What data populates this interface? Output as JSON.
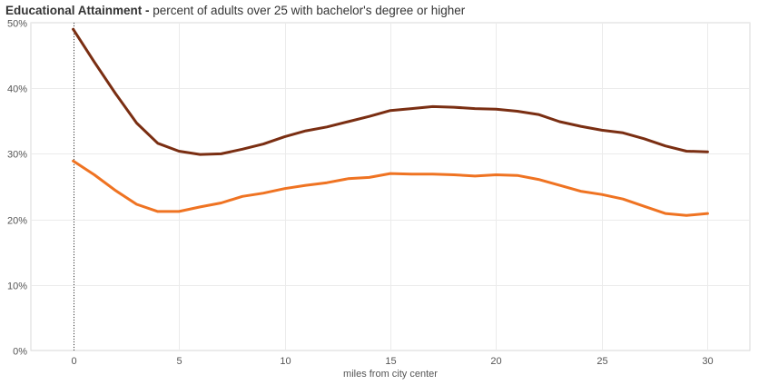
{
  "header": {
    "title_bold": "Educational Attainment -",
    "title_rest": " percent of adults over 25 with bachelor's degree or higher"
  },
  "chart_data": {
    "type": "line",
    "title": "Educational Attainment - percent of adults over 25 with bachelor's degree or higher",
    "xlabel": "miles from city center",
    "ylabel": "",
    "xlim": [
      -2,
      32
    ],
    "ylim": [
      0,
      50
    ],
    "x_ticks": [
      0,
      5,
      10,
      15,
      20,
      25,
      30
    ],
    "y_ticks": [
      0,
      10,
      20,
      30,
      40,
      50
    ],
    "y_tick_labels": [
      "0%",
      "10%",
      "20%",
      "30%",
      "40%",
      "50%"
    ],
    "grid": true,
    "reference_line_x": 0,
    "x": [
      0,
      1,
      2,
      3,
      4,
      5,
      6,
      7,
      8,
      9,
      10,
      11,
      12,
      13,
      14,
      15,
      16,
      17,
      18,
      19,
      20,
      21,
      22,
      23,
      24,
      25,
      26,
      27,
      28,
      29,
      30
    ],
    "series": [
      {
        "name": "series-dark",
        "color": "#7a2e12",
        "values": [
          49.0,
          44.0,
          39.2,
          34.7,
          31.6,
          30.4,
          29.9,
          30.0,
          30.7,
          31.5,
          32.6,
          33.5,
          34.1,
          34.9,
          35.7,
          36.6,
          36.9,
          37.2,
          37.1,
          36.9,
          36.8,
          36.5,
          36.0,
          34.9,
          34.2,
          33.6,
          33.2,
          32.3,
          31.2,
          30.4,
          30.3
        ]
      },
      {
        "name": "series-light",
        "color": "#ef7322",
        "values": [
          28.9,
          26.8,
          24.4,
          22.3,
          21.2,
          21.2,
          21.9,
          22.5,
          23.5,
          24.0,
          24.7,
          25.2,
          25.6,
          26.2,
          26.4,
          27.0,
          26.9,
          26.9,
          26.8,
          26.6,
          26.8,
          26.7,
          26.1,
          25.2,
          24.3,
          23.8,
          23.1,
          22.0,
          20.9,
          20.6,
          20.9
        ]
      }
    ]
  }
}
